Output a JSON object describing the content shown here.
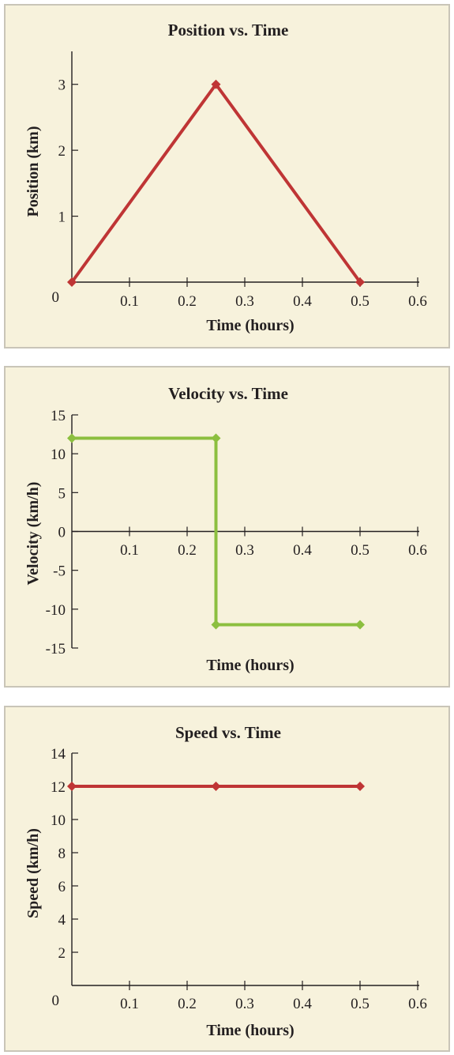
{
  "chart_data": [
    {
      "type": "line",
      "title": "Position vs. Time",
      "xlabel": "Time (hours)",
      "ylabel": "Position (km)",
      "xlim": [
        0,
        0.6
      ],
      "ylim": [
        0,
        3.5
      ],
      "xticks": [
        0.1,
        0.2,
        0.3,
        0.4,
        0.5,
        0.6
      ],
      "xtick_labels": [
        "0.1",
        "0.2",
        "0.3",
        "0.4",
        "0.5",
        "0.6"
      ],
      "yticks": [
        1,
        2,
        3
      ],
      "ytick_labels": [
        "1",
        "2",
        "3"
      ],
      "origin_label": "0",
      "grid": false,
      "series": [
        {
          "x": [
            0,
            0.25,
            0.5
          ],
          "y": [
            0,
            3,
            0
          ],
          "color": "#bf3535"
        }
      ]
    },
    {
      "type": "line",
      "title": "Velocity vs. Time",
      "xlabel": "Time (hours)",
      "ylabel": "Velocity (km/h)",
      "xlim": [
        0,
        0.6
      ],
      "ylim": [
        -15,
        15
      ],
      "xticks": [
        0.1,
        0.2,
        0.3,
        0.4,
        0.5,
        0.6
      ],
      "xtick_labels": [
        "0.1",
        "0.2",
        "0.3",
        "0.4",
        "0.5",
        "0.6"
      ],
      "yticks": [
        15,
        10,
        5,
        0,
        -5,
        -10,
        -15
      ],
      "ytick_labels": [
        "15",
        "10",
        "5",
        "0",
        "-5",
        "-10",
        "-15"
      ],
      "grid": false,
      "series": [
        {
          "x": [
            0,
            0.25,
            0.25,
            0.5
          ],
          "y": [
            12,
            12,
            -12,
            -12
          ],
          "color": "#8cbf3f"
        }
      ]
    },
    {
      "type": "line",
      "title": "Speed vs. Time",
      "xlabel": "Time (hours)",
      "ylabel": "Speed (km/h)",
      "xlim": [
        0,
        0.6
      ],
      "ylim": [
        0,
        14
      ],
      "xticks": [
        0.1,
        0.2,
        0.3,
        0.4,
        0.5,
        0.6
      ],
      "xtick_labels": [
        "0.1",
        "0.2",
        "0.3",
        "0.4",
        "0.5",
        "0.6"
      ],
      "yticks": [
        2,
        4,
        6,
        8,
        10,
        12,
        14
      ],
      "ytick_labels": [
        "2",
        "4",
        "6",
        "8",
        "10",
        "12",
        "14"
      ],
      "origin_label": "0",
      "grid": false,
      "series": [
        {
          "x": [
            0,
            0.25,
            0.5
          ],
          "y": [
            12,
            12,
            12
          ],
          "color": "#bf3535"
        }
      ]
    }
  ]
}
